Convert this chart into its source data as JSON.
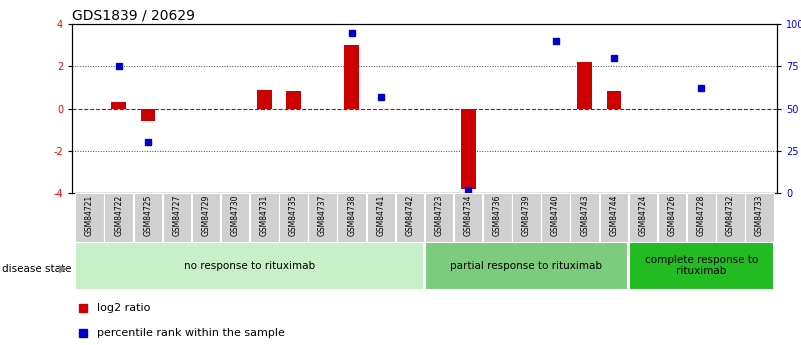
{
  "title": "GDS1839 / 20629",
  "samples": [
    "GSM84721",
    "GSM84722",
    "GSM84725",
    "GSM84727",
    "GSM84729",
    "GSM84730",
    "GSM84731",
    "GSM84735",
    "GSM84737",
    "GSM84738",
    "GSM84741",
    "GSM84742",
    "GSM84723",
    "GSM84734",
    "GSM84736",
    "GSM84739",
    "GSM84740",
    "GSM84743",
    "GSM84744",
    "GSM84724",
    "GSM84726",
    "GSM84728",
    "GSM84732",
    "GSM84733"
  ],
  "log2_ratio": [
    0.0,
    0.3,
    -0.6,
    0.0,
    0.0,
    0.0,
    0.9,
    0.85,
    0.0,
    3.0,
    0.0,
    0.0,
    0.0,
    -3.8,
    0.0,
    0.0,
    0.0,
    2.2,
    0.85,
    0.0,
    0.0,
    0.0,
    0.0,
    0.0
  ],
  "percentile_rank": [
    null,
    75,
    30,
    null,
    null,
    null,
    null,
    null,
    null,
    95,
    57,
    null,
    null,
    2,
    null,
    null,
    90,
    null,
    80,
    null,
    null,
    62,
    null,
    null
  ],
  "groups": [
    {
      "label": "no response to rituximab",
      "start": 0,
      "end": 12,
      "color": "#c8f0c8"
    },
    {
      "label": "partial response to rituximab",
      "start": 12,
      "end": 19,
      "color": "#7dcc7d"
    },
    {
      "label": "complete response to\nrituximab",
      "start": 19,
      "end": 24,
      "color": "#22bb22"
    }
  ],
  "ylim_left": [
    -4,
    4
  ],
  "ylim_right": [
    0,
    100
  ],
  "bar_color": "#cc0000",
  "dot_color": "#0000cc",
  "hline_color": "#cc0000",
  "dotted_color": "#444444",
  "title_fontsize": 10,
  "tick_fontsize": 7,
  "sample_fontsize": 5.5,
  "group_fontsize": 7.5,
  "legend_fontsize": 8
}
